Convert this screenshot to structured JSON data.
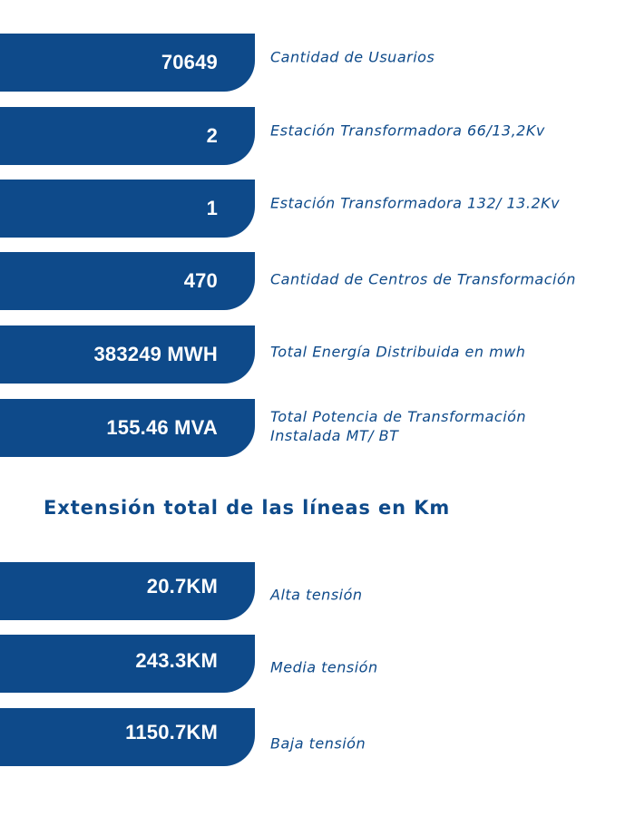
{
  "stats": [
    {
      "value": "70649",
      "label": "Cantidad de Usuarios"
    },
    {
      "value": "2",
      "label": "Estación Transformadora 66/13,2Kv"
    },
    {
      "value": "1",
      "label": "Estación Transformadora 132/ 13.2Kv"
    },
    {
      "value": "470",
      "label": "Cantidad de Centros de Transformación"
    },
    {
      "value": "383249 MWH",
      "label": "Total Energía Distribuida en mwh"
    },
    {
      "value": "155.46 MVA",
      "label_line1": "Total Potencia de Transformación",
      "label_line2": "Instalada MT/ BT"
    }
  ],
  "lines_section": {
    "title": "Extensión total de las líneas en Km",
    "items": [
      {
        "value": "20.7KM",
        "label": "Alta tensión"
      },
      {
        "value": "243.3KM",
        "label": "Media tensión"
      },
      {
        "value": "1150.7KM",
        "label": "Baja tensión"
      }
    ]
  },
  "colors": {
    "brand_blue": "#0e4a8a",
    "text_on_blue": "#ffffff"
  }
}
